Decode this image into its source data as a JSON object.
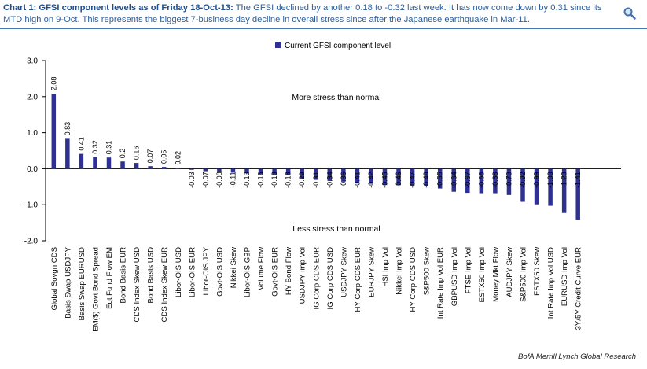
{
  "header": {
    "title_bold": "Chart 1: GFSI component levels as of Friday 18-Oct-13:",
    "title_rest": " The GFSI declined by another 0.18 to -0.32 last week. It has now come down by 0.31 since its MTD high on 9-Oct. This represents the biggest 7-business day decline in overall stress since after the Japanese earthquake in Mar-11.",
    "search_icon": "search-icon"
  },
  "source": "BofA Merrill Lynch Global Research",
  "colors": {
    "bar": "#2e3192",
    "title": "#1f4e8c",
    "rule": "#4a78b5"
  },
  "chart_data": {
    "type": "bar",
    "title": "",
    "xlabel": "",
    "ylabel": "",
    "ylim": [
      -2.0,
      3.0
    ],
    "yticks": [
      "3.0",
      "2.0",
      "1.0",
      "0.0",
      "-1.0",
      "-2.0"
    ],
    "legend": "Current GFSI component level",
    "legend_position": "top-center",
    "annotations": [
      "More stress than normal",
      "Less stress than normal"
    ],
    "categories": [
      "Global Sovgn CDS",
      "Basis Swap USDJPY",
      "Basis Swap EURUSD",
      "EM($) Govt Bond Spread",
      "Eqt Fund Flow EM",
      "Bond Basis EUR",
      "CDS Index Skew USD",
      "Bond Basis USD",
      "CDS Index Skew EUR",
      "Libor-OIS USD",
      "Libor-OIS EUR",
      "Libor-OIS JPY",
      "Govt-OIS USD",
      "Nikkei Skew",
      "Libor-OIS GBP",
      "Volume Flow",
      "Govt-OIS EUR",
      "HY Bond Flow",
      "USDJPY Imp Vol",
      "IG Corp CDS EUR",
      "IG Corp CDS USD",
      "USDJPY Skew",
      "HY Corp CDS EUR",
      "EURJPY Skew",
      "HSI Imp Vol",
      "Nikkei Imp Vol",
      "HY Corp CDS USD",
      "S&P500 Skew",
      "Int Rate Imp Vol EUR",
      "GBPUSD Imp Vol",
      "FTSE Imp Vol",
      "ESTX50 Imp Vol",
      "Money Mkt Flow",
      "AUDJPY Skew",
      "S&P500 Imp Vol",
      "ESTX50 Skew",
      "Int Rate Imp Vol USD",
      "EURUSD Imp Vol",
      "3Y/5Y Credit Curve EUR"
    ],
    "values": [
      2.08,
      0.83,
      0.41,
      0.32,
      0.31,
      0.2,
      0.16,
      0.07,
      0.05,
      0.02,
      -0.03,
      -0.07,
      -0.08,
      -0.11,
      -0.13,
      -0.16,
      -0.18,
      -0.18,
      -0.29,
      -0.31,
      -0.34,
      -0.36,
      -0.41,
      -0.42,
      -0.45,
      -0.46,
      -0.47,
      -0.49,
      -0.55,
      -0.64,
      -0.67,
      -0.68,
      -0.68,
      -0.73,
      -0.92,
      -0.99,
      -1.03,
      -1.23,
      -1.41
    ],
    "labels": [
      "2.08",
      "0.83",
      "0.41",
      "0.32",
      "0.31",
      "0.2",
      "0.16",
      "0.07",
      "0.05",
      "0.02",
      "-0.03",
      "-0.07",
      "-0.08",
      "-0.11",
      "-0.13",
      "-0.16",
      "-0.18",
      "-0.18",
      "-0.29",
      "-0.31",
      "-0.34",
      "-0.36",
      "-0.41",
      "-0.42",
      "-0.45",
      "-0.46",
      "-0.47",
      "-0.49",
      "-0.55",
      "-0.64",
      "-0.67",
      "-0.68",
      "-0.68",
      "-0.73",
      "-0.92",
      "-0.99",
      "-1.03",
      "-1.23",
      "-1.41"
    ]
  }
}
